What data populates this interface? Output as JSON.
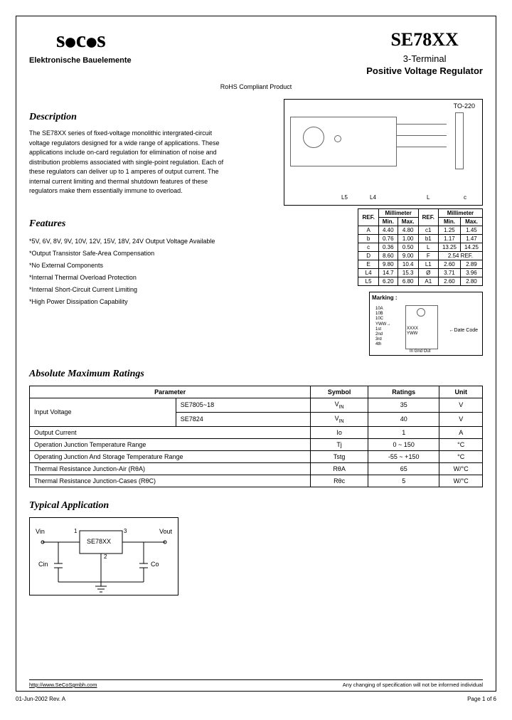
{
  "header": {
    "logo_text": "seᴄᴏs",
    "logo_sub": "Elektronische Bauelemente",
    "part_number": "SE78XX",
    "subtitle1": "3-Terminal",
    "subtitle2": "Positive Voltage Regulator",
    "rohs": "RoHS Compliant Product"
  },
  "package_label": "TO-220",
  "description": {
    "heading": "Description",
    "text": "The SE78XX series of fixed-voltage monolithic intergrated-circuit voltage regulators designed for a wide range of applications. These applications include on-card regulation for elimination of noise and distribution problems associated with single-point regulation. Each of these regulators can deliver up to 1 amperes of output current. The internal current limiting and thermal shutdown features of these regulators make them essentially immune to overload."
  },
  "features": {
    "heading": "Features",
    "items": [
      "*5V, 6V, 8V, 9V, 10V, 12V, 15V, 18V, 24V Output Voltage Available",
      "*Output Transistor Safe-Area Compensation",
      "*No External Components",
      "*Internal Thermal Overload Protection",
      "*Internal Short-Circuit Current Limiting",
      "*High Power Dissipation Capability"
    ]
  },
  "dim_table": {
    "headers": [
      "REF.",
      "Min.",
      "Max.",
      "REF.",
      "Min.",
      "Max."
    ],
    "group_headers": [
      "",
      "Millimeter",
      "",
      "Millimeter"
    ],
    "rows": [
      [
        "A",
        "4.40",
        "4.80",
        "c1",
        "1.25",
        "1.45"
      ],
      [
        "b",
        "0.76",
        "1.00",
        "b1",
        "1.17",
        "1.47"
      ],
      [
        "c",
        "0.36",
        "0.50",
        "L",
        "13.25",
        "14.25"
      ],
      [
        "D",
        "8.60",
        "9.00",
        "F",
        "2.54 REF."
      ],
      [
        "E",
        "9.80",
        "10.4",
        "L1",
        "2.60",
        "2.89"
      ],
      [
        "L4",
        "14.7",
        "15.3",
        "Ø",
        "3.71",
        "3.96"
      ],
      [
        "L5",
        "6.20",
        "6.80",
        "A1",
        "2.60",
        "2.80"
      ]
    ]
  },
  "marking_label": "Marking :",
  "marking_datacode": "Date Code",
  "ratings": {
    "heading": "Absolute Maximum Ratings",
    "columns": [
      "Parameter",
      "Symbol",
      "Ratings",
      "Unit"
    ],
    "rows": [
      {
        "param": "Input Voltage",
        "sub": "SE7805~18",
        "symbol": "V",
        "symsub": "IN",
        "rating": "35",
        "unit": "V"
      },
      {
        "param": "",
        "sub": "SE7824",
        "symbol": "V",
        "symsub": "IN",
        "rating": "40",
        "unit": "V"
      },
      {
        "param": "Output Current",
        "sub": "",
        "symbol": "Io",
        "symsub": "",
        "rating": "1",
        "unit": "A"
      },
      {
        "param": "Operation Junction Temperature Range",
        "sub": "",
        "symbol": "Tj",
        "symsub": "",
        "rating": "0 ~ 150",
        "unit": "°C"
      },
      {
        "param": "Operating Junction And Storage Temperature Range",
        "sub": "",
        "symbol": "Tstg",
        "symsub": "",
        "rating": "-55 ~ +150",
        "unit": "°C"
      },
      {
        "param": "Thermal Resistance Junction-Air (RθA)",
        "sub": "",
        "symbol": "RθA",
        "symsub": "",
        "rating": "65",
        "unit": "W/°C"
      },
      {
        "param": "Thermal Resistance Junction-Cases (RθC)",
        "sub": "",
        "symbol": "Rθc",
        "symsub": "",
        "rating": "5",
        "unit": "W/°C"
      }
    ]
  },
  "application": {
    "heading": "Typical Application",
    "labels": {
      "vin": "Vin",
      "vout": "Vout",
      "cin": "Cin",
      "co": "Co",
      "chip": "SE78XX",
      "p1": "1",
      "p2": "2",
      "p3": "3"
    }
  },
  "footer": {
    "url": "http://www.SeCoSgmbh.com",
    "disclaimer": "Any changing of specification will not be informed individual",
    "date": "01-Jun-2002 Rev. A",
    "page": "Page 1 of 6"
  }
}
